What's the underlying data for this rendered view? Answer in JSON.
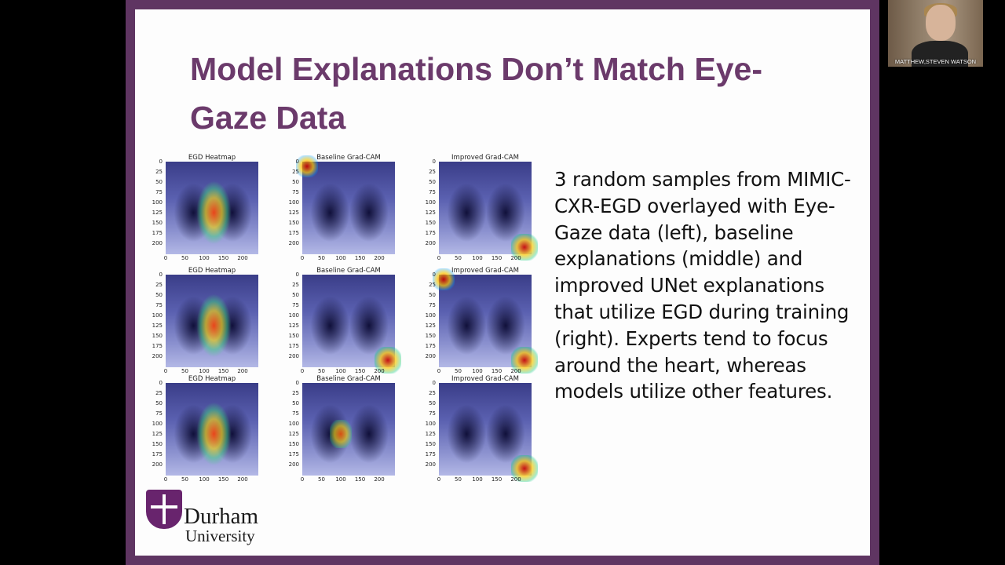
{
  "slide": {
    "title": "Model Explanations Don’t Match Eye-Gaze Data",
    "body": "3 random samples from MIMIC-CXR-EGD overlayed with Eye-Gaze data (left), baseline explanations (middle) and improved UNet explanations that utilize EGD during training (right). Experts tend to focus around the heart, whereas models utilize other features.",
    "panel_titles": [
      "EGD Heatmap",
      "Baseline Grad-CAM",
      "Improved Grad-CAM"
    ],
    "y_ticks": [
      "0",
      "25",
      "50",
      "75",
      "100",
      "125",
      "150",
      "175",
      "200"
    ],
    "x_ticks": [
      "0",
      "50",
      "100",
      "150",
      "200"
    ]
  },
  "logo": {
    "name": "Durham",
    "subtitle": "University"
  },
  "webcam": {
    "participant_name": "MATTHEW,STEVEN WATSON"
  },
  "colors": {
    "frame": "#5f3562",
    "title": "#6b3a6b",
    "logo": "#68246d"
  }
}
